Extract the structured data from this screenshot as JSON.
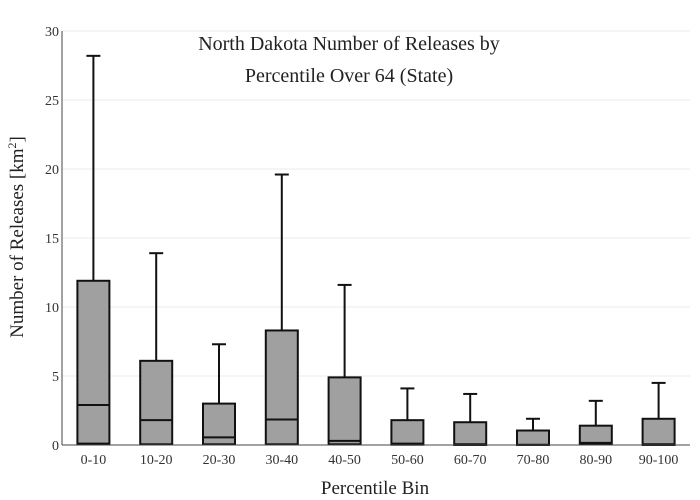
{
  "chart_data": {
    "type": "box",
    "title_line1": "North Dakota Number of Releases by",
    "title_line2": "Percentile Over 64 (State)",
    "xlabel": "Percentile Bin",
    "ylabel": "Number of Releases  [km",
    "ylabel_sup": "2",
    "ylabel_close": "]",
    "ylim": [
      0,
      30
    ],
    "yticks": [
      0,
      5,
      10,
      15,
      20,
      25,
      30
    ],
    "grid": true,
    "box_color": "#a0a0a0",
    "categories": [
      "0-10",
      "10-20",
      "20-30",
      "30-40",
      "40-50",
      "50-60",
      "60-70",
      "70-80",
      "80-90",
      "90-100"
    ],
    "boxes": [
      {
        "min": 0,
        "q1": 0.1,
        "median": 2.9,
        "q3": 11.9,
        "max": 28.2
      },
      {
        "min": 0,
        "q1": 0.05,
        "median": 1.8,
        "q3": 6.1,
        "max": 13.9
      },
      {
        "min": 0,
        "q1": 0.05,
        "median": 0.55,
        "q3": 3.0,
        "max": 7.3
      },
      {
        "min": 0,
        "q1": 0.05,
        "median": 1.85,
        "q3": 8.3,
        "max": 19.6
      },
      {
        "min": 0,
        "q1": 0.05,
        "median": 0.3,
        "q3": 4.9,
        "max": 11.6
      },
      {
        "min": 0,
        "q1": 0.02,
        "median": 0.1,
        "q3": 1.8,
        "max": 4.1
      },
      {
        "min": 0,
        "q1": 0.0,
        "median": 0.05,
        "q3": 1.65,
        "max": 3.7
      },
      {
        "min": 0,
        "q1": 0.0,
        "median": 0.02,
        "q3": 1.05,
        "max": 1.9
      },
      {
        "min": 0,
        "q1": 0.05,
        "median": 0.15,
        "q3": 1.4,
        "max": 3.2
      },
      {
        "min": 0,
        "q1": 0.0,
        "median": 0.05,
        "q3": 1.9,
        "max": 4.5
      }
    ]
  }
}
